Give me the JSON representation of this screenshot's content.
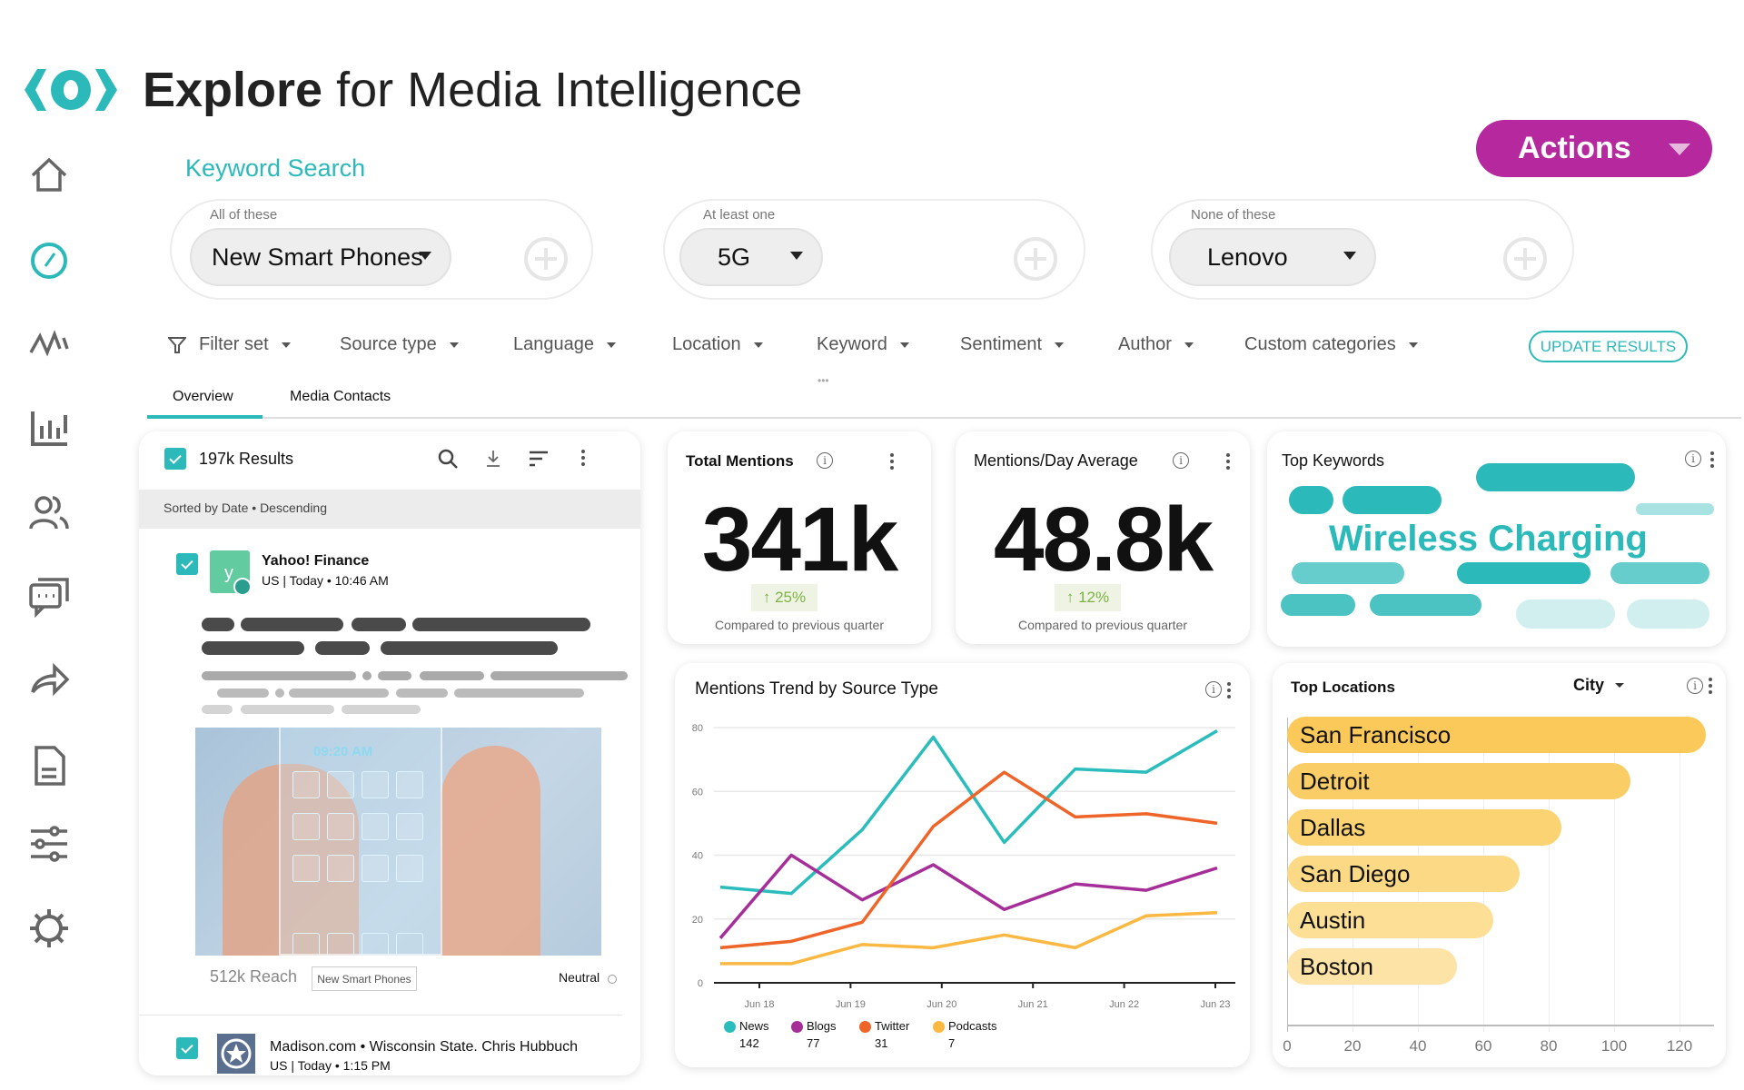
{
  "header": {
    "title_bold": "Explore",
    "title_rest": " for Media Intelligence",
    "actions_label": "Actions"
  },
  "sidebar": {
    "items": [
      "home-icon",
      "compass-icon",
      "pulse-icon",
      "bar-chart-icon",
      "users-icon",
      "chat-icon",
      "share-icon",
      "document-icon",
      "sliders-icon",
      "gear-icon"
    ],
    "active": "compass-icon"
  },
  "keyword_search": {
    "label": "Keyword Search",
    "groups": [
      {
        "label": "All of these",
        "value": "New Smart Phones"
      },
      {
        "label": "At least one",
        "value": "5G"
      },
      {
        "label": "None of these",
        "value": "Lenovo"
      }
    ]
  },
  "filters": {
    "items": [
      "Filter set",
      "Source type",
      "Language",
      "Location",
      "Keyword",
      "Sentiment",
      "Author",
      "Custom categories"
    ],
    "more": "•••",
    "update_label": "UPDATE RESULTS"
  },
  "tabs": [
    {
      "label": "Overview",
      "active": true
    },
    {
      "label": "Media Contacts",
      "active": false
    }
  ],
  "results": {
    "count_label": "197k Results",
    "sort_label": "Sorted by Date • Descending",
    "items": [
      {
        "source": "Yahoo! Finance",
        "meta": "US | Today • 10:46 AM",
        "reach": "512k Reach",
        "tag": "New Smart Phones",
        "sentiment": "Neutral",
        "image_time": "09:20 AM",
        "checked": true
      },
      {
        "source": "Madison.com • Wisconsin State. Chris Hubbuch",
        "meta": "US | Today • 1:15 PM",
        "checked": true
      }
    ]
  },
  "total_mentions": {
    "title": "Total Mentions",
    "value": "341k",
    "change": "↑ 25%",
    "compare": "Compared to previous quarter"
  },
  "mentions_day": {
    "title": "Mentions/Day Average",
    "value": "48.8k",
    "change": "↑ 12%",
    "compare": "Compared to previous quarter"
  },
  "top_keywords": {
    "title": "Top Keywords",
    "highlight": "Wireless Charging"
  },
  "colors": {
    "teal": "#2bb9b9",
    "magenta": "#b5289e",
    "news": "#2bbcbc",
    "blogs": "#a62e98",
    "twitter": "#ef6428",
    "podcasts": "#fbb843",
    "location_bar": "#fbc95a",
    "change_green": "#7cb342"
  },
  "chart_data": [
    {
      "type": "line",
      "title": "Mentions Trend by Source Type",
      "x_ticks": [
        "Jun 18",
        "Jun 19",
        "Jun 20",
        "Jun 21",
        "Jun 22",
        "Jun 23"
      ],
      "ylim": [
        0,
        80
      ],
      "y_ticks": [
        0,
        20,
        40,
        60,
        80
      ],
      "grid": true,
      "legend": "bottom-left",
      "series": [
        {
          "name": "News",
          "total": "142",
          "color": "#2bbcbc",
          "values": [
            30,
            28,
            48,
            77,
            44,
            67,
            66,
            79
          ]
        },
        {
          "name": "Blogs",
          "total": "77",
          "color": "#a62e98",
          "values": [
            14,
            40,
            26,
            37,
            23,
            31,
            29,
            36
          ]
        },
        {
          "name": "Twitter",
          "total": "31",
          "color": "#ef6428",
          "values": [
            11,
            13,
            19,
            49,
            66,
            52,
            53,
            50
          ]
        },
        {
          "name": "Podcasts",
          "total": "7",
          "color": "#fbb843",
          "values": [
            6,
            6,
            12,
            11,
            15,
            11,
            21,
            22
          ]
        }
      ]
    },
    {
      "type": "bar",
      "orientation": "horizontal",
      "title": "Top Locations",
      "selector": "City",
      "categories": [
        "San Francisco",
        "Detroit",
        "Dallas",
        "San Diego",
        "Austin",
        "Boston"
      ],
      "values": [
        128,
        105,
        84,
        71,
        63,
        52
      ],
      "xlim": [
        0,
        130
      ],
      "x_ticks": [
        0,
        20,
        40,
        60,
        80,
        100,
        120
      ],
      "grid": true
    }
  ]
}
